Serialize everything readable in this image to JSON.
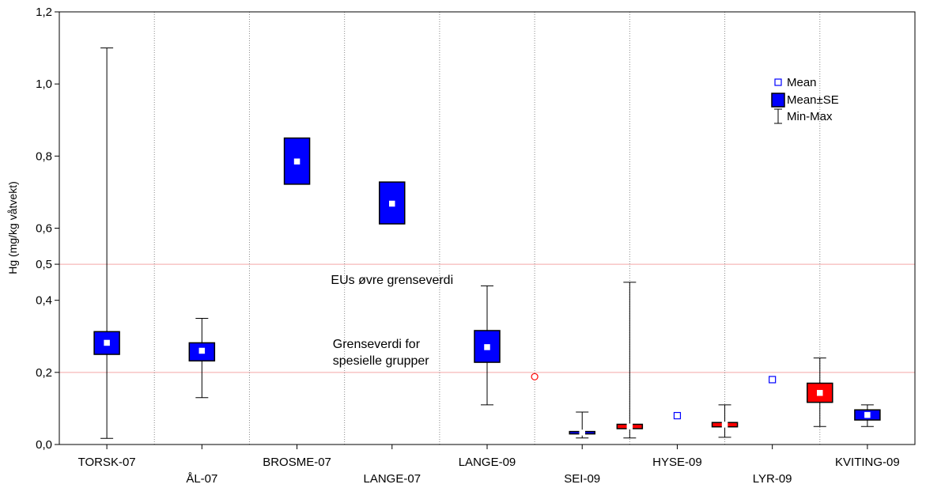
{
  "chart_data": {
    "type": "boxplot",
    "ylabel": "Hg (mg/kg våtvekt)",
    "ylim": [
      0,
      1.2
    ],
    "yticks": [
      "0,0",
      "0,2",
      "0,4",
      "0,5",
      "0,6",
      "0,8",
      "1,0",
      "1,2"
    ],
    "ytick_values": [
      0.0,
      0.2,
      0.4,
      0.5,
      0.6,
      0.8,
      1.0,
      1.2
    ],
    "categories": [
      "TORSK-07",
      "ÅL-07",
      "BROSME-07",
      "LANGE-07",
      "LANGE-09",
      "SEI-09",
      "HYSE-09",
      "LYR-09",
      "KVITING-09"
    ],
    "category_label_row": [
      0,
      1,
      0,
      1,
      0,
      1,
      0,
      1,
      0
    ],
    "reference_lines": [
      {
        "value": 0.5,
        "label": "EUs øvre grenseverdi",
        "color": "#f4a6a6"
      },
      {
        "value": 0.2,
        "label_lines": [
          "Grenseverdi for",
          "spesielle grupper"
        ],
        "color": "#f4a6a6"
      }
    ],
    "legend": {
      "placement": "top-right",
      "entries": [
        {
          "key": "mean",
          "label": "Mean"
        },
        {
          "key": "se",
          "label": "Mean±SE"
        },
        {
          "key": "minmax",
          "label": "Min-Max"
        }
      ]
    },
    "colors": {
      "blue": "#0000ff",
      "red": "#ff0000",
      "mean_marker": "#ffffff",
      "grid_divider": "#888888"
    },
    "series": [
      {
        "category": "TORSK-07",
        "offset": 0,
        "color": "blue",
        "mean": 0.282,
        "se_low": 0.25,
        "se_high": 0.313,
        "min": 0.017,
        "max": 1.1
      },
      {
        "category": "ÅL-07",
        "offset": 0,
        "color": "blue",
        "mean": 0.26,
        "se_low": 0.232,
        "se_high": 0.282,
        "min": 0.13,
        "max": 0.35
      },
      {
        "category": "BROSME-07",
        "offset": 0,
        "color": "blue",
        "mean": 0.785,
        "se_low": 0.722,
        "se_high": 0.85
      },
      {
        "category": "LANGE-07",
        "offset": 0,
        "color": "blue",
        "mean": 0.668,
        "se_low": 0.612,
        "se_high": 0.728
      },
      {
        "category": "LANGE-09",
        "offset": 0,
        "color": "blue",
        "mean": 0.27,
        "se_low": 0.228,
        "se_high": 0.316,
        "min": 0.11,
        "max": 0.44
      },
      {
        "category": "LANGE-09",
        "offset": 1,
        "color": "red",
        "mean": 0.188
      },
      {
        "category": "SEI-09",
        "offset": 0,
        "color": "blue",
        "mean": 0.033,
        "se_low": 0.031,
        "se_high": 0.036,
        "min": 0.018,
        "max": 0.09
      },
      {
        "category": "SEI-09",
        "offset": 1,
        "color": "red",
        "mean": 0.05,
        "se_low": 0.044,
        "se_high": 0.056,
        "min": 0.018,
        "max": 0.45
      },
      {
        "category": "HYSE-09",
        "offset": 0,
        "color": "blue",
        "mean": 0.08
      },
      {
        "category": "HYSE-09",
        "offset": 1,
        "color": "red",
        "mean": 0.055,
        "se_low": 0.049,
        "se_high": 0.061,
        "min": 0.02,
        "max": 0.11
      },
      {
        "category": "LYR-09",
        "offset": 0,
        "color": "blue",
        "mean": 0.18
      },
      {
        "category": "LYR-09",
        "offset": 1,
        "color": "red",
        "mean": 0.143,
        "se_low": 0.117,
        "se_high": 0.17,
        "min": 0.05,
        "max": 0.24
      },
      {
        "category": "KVITING-09",
        "offset": 0,
        "color": "blue",
        "mean": 0.082,
        "se_low": 0.068,
        "se_high": 0.096,
        "min": 0.05,
        "max": 0.11
      }
    ]
  }
}
